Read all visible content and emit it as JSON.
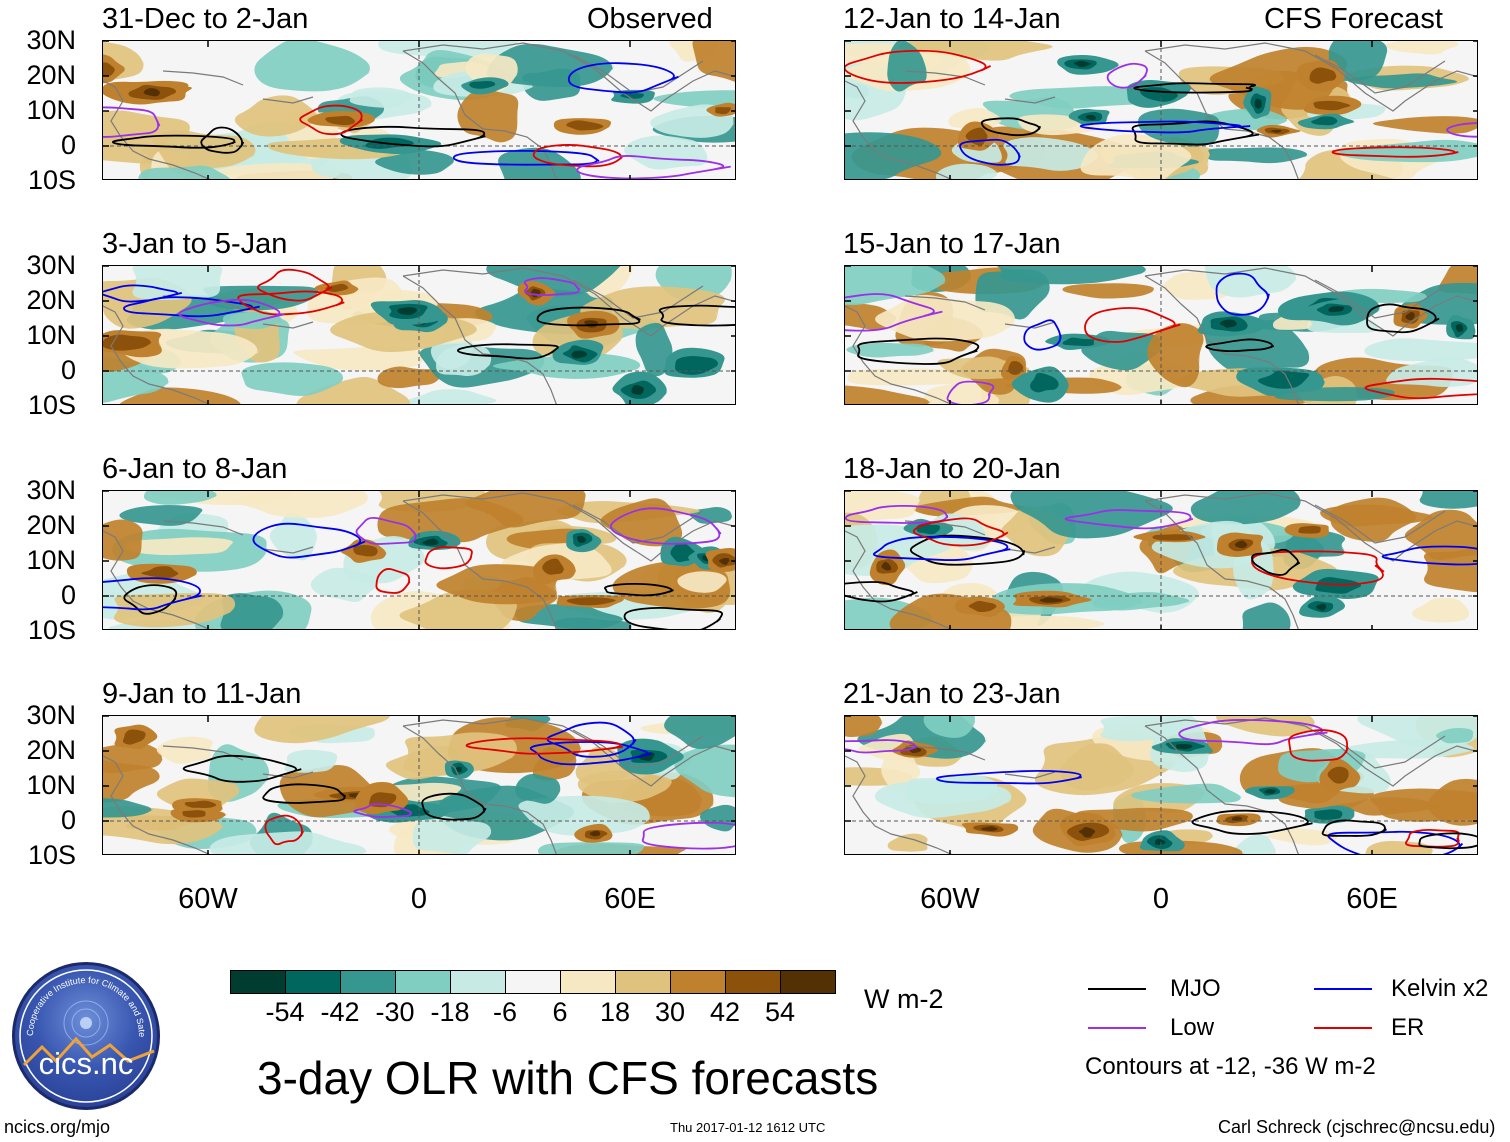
{
  "header": {
    "observed_label": "Observed",
    "forecast_label": "CFS Forecast"
  },
  "panels": [
    {
      "title": "31-Dec to 2-Jan"
    },
    {
      "title": "3-Jan to 5-Jan"
    },
    {
      "title": "6-Jan to 8-Jan"
    },
    {
      "title": "9-Jan to 11-Jan"
    },
    {
      "title": "12-Jan to 14-Jan"
    },
    {
      "title": "15-Jan to 17-Jan"
    },
    {
      "title": "18-Jan to 20-Jan"
    },
    {
      "title": "21-Jan to 23-Jan"
    }
  ],
  "axes": {
    "lat_labels": [
      "30N",
      "20N",
      "10N",
      "0",
      "10S"
    ],
    "lon_labels": [
      "60W",
      "0",
      "60E"
    ]
  },
  "colorbar": {
    "unit": "W m-2",
    "labels": [
      "-54",
      "-42",
      "-30",
      "-18",
      "-6",
      "6",
      "18",
      "30",
      "42",
      "54"
    ],
    "colors": [
      "#003c30",
      "#01665e",
      "#35978f",
      "#80cdc1",
      "#c7eae5",
      "#f5f5f5",
      "#f6e8c3",
      "#dfc27d",
      "#bf812d",
      "#8c510a",
      "#543005"
    ]
  },
  "legend": {
    "mjo": {
      "label": "MJO",
      "color": "#000000"
    },
    "kelvin": {
      "label": "Kelvin x2",
      "color": "#0000ee"
    },
    "low": {
      "label": "Low",
      "color": "#9b30e8"
    },
    "er": {
      "label": "ER",
      "color": "#e00000"
    },
    "contours_note": "Contours at -12, -36 W m-2"
  },
  "title": "3-day OLR with CFS forecasts",
  "logo": {
    "name": "cics.nc",
    "ring_text": "Cooperative Institute for Climate and Satellites"
  },
  "footer": {
    "url": "ncics.org/mjo",
    "timestamp": "Thu 2017-01-12 1612 UTC",
    "author": "Carl Schreck (cjschrec@ncsu.edu)"
  }
}
